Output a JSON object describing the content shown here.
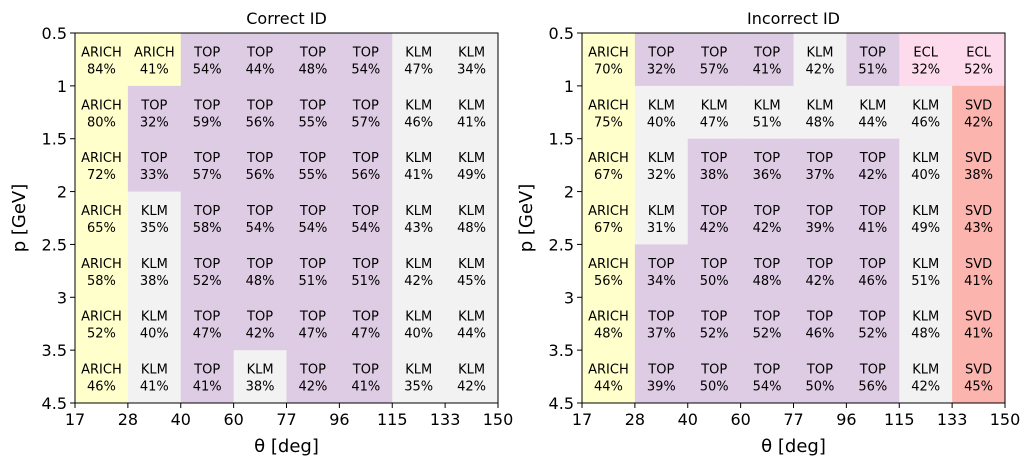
{
  "colors": {
    "ARICH": "#ffffcc",
    "TOP": "#decbe4",
    "KLM": "#f2f2f2",
    "ECL": "#fddaec",
    "SVD": "#fbb4ae"
  },
  "chart_data": [
    {
      "type": "heatmap",
      "title": "Correct ID",
      "xlabel": "θ [deg]",
      "ylabel": "p [GeV]",
      "x_edges": [
        17,
        28,
        40,
        60,
        77,
        96,
        115,
        133,
        150
      ],
      "x_tick_labels": [
        "17",
        "28",
        "40",
        "60",
        "77",
        "96",
        "115",
        "133",
        "150"
      ],
      "y_ticks": [
        0.5,
        1,
        1.5,
        2,
        2.5,
        3,
        3.5,
        4.5
      ],
      "y_tick_labels": [
        "0.5",
        "1",
        "1.5",
        "2",
        "2.5",
        "3",
        "3.5",
        "4.5"
      ],
      "y_bins": [
        "0.5–1",
        "1–1.5",
        "1.5–2",
        "2–2.5",
        "2.5–3",
        "3–3.5",
        "3.5–4.5"
      ],
      "detectors": [
        [
          "ARICH",
          "ARICH",
          "TOP",
          "TOP",
          "TOP",
          "TOP",
          "KLM",
          "KLM"
        ],
        [
          "ARICH",
          "TOP",
          "TOP",
          "TOP",
          "TOP",
          "TOP",
          "KLM",
          "KLM"
        ],
        [
          "ARICH",
          "TOP",
          "TOP",
          "TOP",
          "TOP",
          "TOP",
          "KLM",
          "KLM"
        ],
        [
          "ARICH",
          "KLM",
          "TOP",
          "TOP",
          "TOP",
          "TOP",
          "KLM",
          "KLM"
        ],
        [
          "ARICH",
          "KLM",
          "TOP",
          "TOP",
          "TOP",
          "TOP",
          "KLM",
          "KLM"
        ],
        [
          "ARICH",
          "KLM",
          "TOP",
          "TOP",
          "TOP",
          "TOP",
          "KLM",
          "KLM"
        ],
        [
          "ARICH",
          "KLM",
          "TOP",
          "KLM",
          "TOP",
          "TOP",
          "KLM",
          "KLM"
        ]
      ],
      "percents": [
        [
          "84%",
          "41%",
          "54%",
          "44%",
          "48%",
          "54%",
          "47%",
          "34%"
        ],
        [
          "80%",
          "32%",
          "59%",
          "56%",
          "55%",
          "57%",
          "46%",
          "41%"
        ],
        [
          "72%",
          "33%",
          "57%",
          "56%",
          "55%",
          "56%",
          "41%",
          "49%"
        ],
        [
          "65%",
          "35%",
          "58%",
          "54%",
          "54%",
          "54%",
          "43%",
          "48%"
        ],
        [
          "58%",
          "38%",
          "52%",
          "48%",
          "51%",
          "51%",
          "42%",
          "45%"
        ],
        [
          "52%",
          "40%",
          "47%",
          "42%",
          "47%",
          "47%",
          "40%",
          "44%"
        ],
        [
          "46%",
          "41%",
          "41%",
          "38%",
          "42%",
          "41%",
          "35%",
          "42%"
        ]
      ]
    },
    {
      "type": "heatmap",
      "title": "Incorrect ID",
      "xlabel": "θ [deg]",
      "ylabel": "p [GeV]",
      "x_edges": [
        17,
        28,
        40,
        60,
        77,
        96,
        115,
        133,
        150
      ],
      "x_tick_labels": [
        "17",
        "28",
        "40",
        "60",
        "77",
        "96",
        "115",
        "133",
        "150"
      ],
      "y_ticks": [
        0.5,
        1,
        1.5,
        2,
        2.5,
        3,
        3.5,
        4.5
      ],
      "y_tick_labels": [
        "0.5",
        "1",
        "1.5",
        "2",
        "2.5",
        "3",
        "3.5",
        "4.5"
      ],
      "y_bins": [
        "0.5–1",
        "1–1.5",
        "1.5–2",
        "2–2.5",
        "2.5–3",
        "3–3.5",
        "3.5–4.5"
      ],
      "detectors": [
        [
          "ARICH",
          "TOP",
          "TOP",
          "TOP",
          "KLM",
          "TOP",
          "ECL",
          "ECL"
        ],
        [
          "ARICH",
          "KLM",
          "KLM",
          "KLM",
          "KLM",
          "KLM",
          "KLM",
          "SVD"
        ],
        [
          "ARICH",
          "KLM",
          "TOP",
          "TOP",
          "TOP",
          "TOP",
          "KLM",
          "SVD"
        ],
        [
          "ARICH",
          "KLM",
          "TOP",
          "TOP",
          "TOP",
          "TOP",
          "KLM",
          "SVD"
        ],
        [
          "ARICH",
          "TOP",
          "TOP",
          "TOP",
          "TOP",
          "TOP",
          "KLM",
          "SVD"
        ],
        [
          "ARICH",
          "TOP",
          "TOP",
          "TOP",
          "TOP",
          "TOP",
          "KLM",
          "SVD"
        ],
        [
          "ARICH",
          "TOP",
          "TOP",
          "TOP",
          "TOP",
          "TOP",
          "KLM",
          "SVD"
        ]
      ],
      "percents": [
        [
          "70%",
          "32%",
          "57%",
          "41%",
          "42%",
          "51%",
          "32%",
          "52%"
        ],
        [
          "75%",
          "40%",
          "47%",
          "51%",
          "48%",
          "44%",
          "46%",
          "42%"
        ],
        [
          "67%",
          "32%",
          "38%",
          "36%",
          "37%",
          "42%",
          "40%",
          "38%"
        ],
        [
          "67%",
          "31%",
          "42%",
          "42%",
          "39%",
          "41%",
          "49%",
          "43%"
        ],
        [
          "56%",
          "34%",
          "50%",
          "48%",
          "42%",
          "46%",
          "51%",
          "41%"
        ],
        [
          "48%",
          "37%",
          "52%",
          "52%",
          "46%",
          "52%",
          "48%",
          "41%"
        ],
        [
          "44%",
          "39%",
          "50%",
          "54%",
          "50%",
          "56%",
          "42%",
          "45%"
        ]
      ]
    }
  ]
}
